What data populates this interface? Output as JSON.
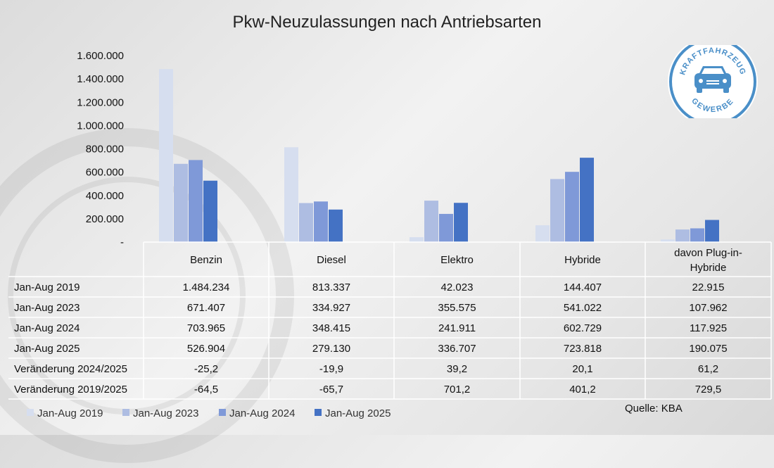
{
  "logo_text": {
    "top": "KRAFTFAHRZEUG",
    "bottom": "GEWERBE"
  },
  "source": "Quelle: KBA",
  "chart_data": {
    "type": "bar",
    "title": "Pkw-Neuzulassungen nach Antriebsarten",
    "categories": [
      "Benzin",
      "Diesel",
      "Elektro",
      "Hybride",
      "davon Plug-in-Hybride"
    ],
    "category_lines": [
      [
        "Benzin"
      ],
      [
        "Diesel"
      ],
      [
        "Elektro"
      ],
      [
        "Hybride"
      ],
      [
        "davon Plug-in-",
        "Hybride"
      ]
    ],
    "ylim": [
      0,
      1600000
    ],
    "yticks": [
      0,
      200000,
      400000,
      600000,
      800000,
      1000000,
      1200000,
      1400000,
      1600000
    ],
    "ytick_labels": [
      "-",
      "200.000",
      "400.000",
      "600.000",
      "800.000",
      "1.000.000",
      "1.200.000",
      "1.400.000",
      "1.600.000"
    ],
    "legend_position": "bottom-left",
    "series": [
      {
        "name": "Jan-Aug 2019",
        "color": "#d6deef",
        "values": [
          1484234,
          813337,
          42023,
          144407,
          22915
        ],
        "labels": [
          "1.484.234",
          "813.337",
          "42.023",
          "144.407",
          "22.915"
        ]
      },
      {
        "name": "Jan-Aug 2023",
        "color": "#aebde2",
        "values": [
          671407,
          334927,
          355575,
          541022,
          107962
        ],
        "labels": [
          "671.407",
          "334.927",
          "355.575",
          "541.022",
          "107.962"
        ]
      },
      {
        "name": "Jan-Aug 2024",
        "color": "#7f99d8",
        "values": [
          703965,
          348415,
          241911,
          602729,
          117925
        ],
        "labels": [
          "703.965",
          "348.415",
          "241.911",
          "602.729",
          "117.925"
        ]
      },
      {
        "name": "Jan-Aug 2025",
        "color": "#4472c4",
        "values": [
          526904,
          279130,
          336707,
          723818,
          190075
        ],
        "labels": [
          "526.904",
          "279.130",
          "336.707",
          "723.818",
          "190.075"
        ]
      }
    ],
    "extra_rows": [
      {
        "label": "Veränderung 2024/2025",
        "values": [
          "-25,2",
          "-19,9",
          "39,2",
          "20,1",
          "61,2"
        ]
      },
      {
        "label": "Veränderung 2019/2025",
        "values": [
          "-64,5",
          "-65,7",
          "701,2",
          "401,2",
          "729,5"
        ]
      }
    ]
  }
}
